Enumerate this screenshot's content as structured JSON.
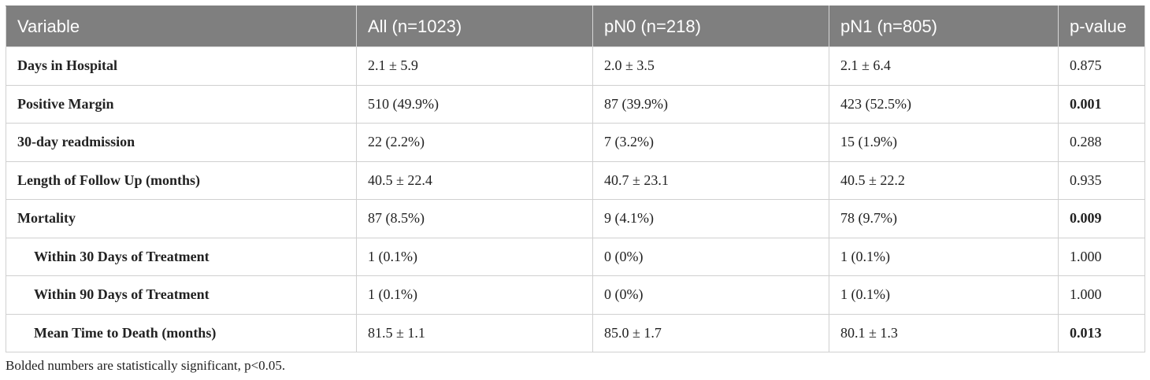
{
  "table": {
    "headers": [
      "Variable",
      "All (n=1023)",
      "pN0 (n=218)",
      "pN1 (n=805)",
      "p-value"
    ],
    "rows": [
      {
        "label": "Days in Hospital",
        "all": "2.1 ± 5.9",
        "pn0": "2.0 ± 3.5",
        "pn1": "2.1 ± 6.4",
        "p": "0.875"
      },
      {
        "label": "Positive Margin",
        "all": "510 (49.9%)",
        "pn0": "87 (39.9%)",
        "pn1": "423 (52.5%)",
        "p": "0.001"
      },
      {
        "label": "30-day readmission",
        "all": "22 (2.2%)",
        "pn0": "7 (3.2%)",
        "pn1": "15 (1.9%)",
        "p": "0.288"
      },
      {
        "label": "Length of Follow Up (months)",
        "all": "40.5 ± 22.4",
        "pn0": "40.7 ± 23.1",
        "pn1": "40.5 ± 22.2",
        "p": "0.935"
      },
      {
        "label": "Mortality",
        "all": "87 (8.5%)",
        "pn0": "9 (4.1%)",
        "pn1": "78 (9.7%)",
        "p": "0.009"
      },
      {
        "label": "Within 30 Days of Treatment",
        "all": "1 (0.1%)",
        "pn0": "0 (0%)",
        "pn1": "1 (0.1%)",
        "p": "1.000"
      },
      {
        "label": "Within 90 Days of Treatment",
        "all": "1 (0.1%)",
        "pn0": "0 (0%)",
        "pn1": "1 (0.1%)",
        "p": "1.000"
      },
      {
        "label": "Mean Time to Death (months)",
        "all": "81.5 ± 1.1",
        "pn0": "85.0 ± 1.7",
        "pn1": "80.1 ± 1.3",
        "p": "0.013"
      }
    ]
  },
  "footnote": "Bolded numbers are statistically significant, p<0.05."
}
